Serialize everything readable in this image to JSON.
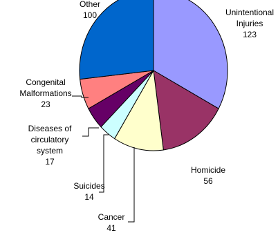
{
  "chart_data": {
    "type": "pie",
    "title": "",
    "legend": "none",
    "slices": [
      {
        "label_lines": [
          "Unintentional",
          "Injuries"
        ],
        "value": 123,
        "value_label": "123",
        "color": "#9999FF"
      },
      {
        "label_lines": [
          "Homicide"
        ],
        "value": 56,
        "value_label": "56",
        "color": "#993366"
      },
      {
        "label_lines": [
          "Cancer"
        ],
        "value": 41,
        "value_label": "41",
        "color": "#FFFFCC"
      },
      {
        "label_lines": [
          "Suicides"
        ],
        "value": 14,
        "value_label": "14",
        "color": "#CCFFFF"
      },
      {
        "label_lines": [
          "Diseases of",
          "circulatory",
          "system"
        ],
        "value": 17,
        "value_label": "17",
        "color": "#660066"
      },
      {
        "label_lines": [
          "Congenital",
          "Malformations"
        ],
        "value": 23,
        "value_label": "23",
        "color": "#FF8080"
      },
      {
        "label_lines": [
          "Other"
        ],
        "value": 100,
        "value_label": "100",
        "color": "#0066CC"
      }
    ]
  }
}
